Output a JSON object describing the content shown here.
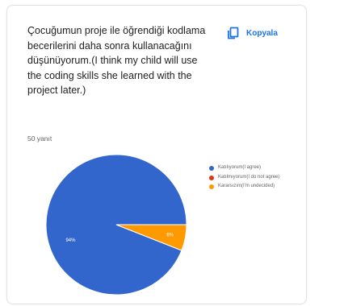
{
  "question": {
    "text": "Çocuğumun proje ile öğrendiği kodlama becerilerini daha sonra kullanacağını düşünüyorum.(I think my child will use the coding skills she learned with the project later.)"
  },
  "copy_button": {
    "label": "Kopyala"
  },
  "response_count": "50 yanıt",
  "colors": {
    "blue": "#3366cc",
    "red": "#dc3912",
    "orange": "#ff9900",
    "accent": "#1a73e8"
  },
  "chart_data": {
    "type": "pie",
    "slices": [
      {
        "label": "Katılıyorum(I agree)",
        "value": 94,
        "display": "94%",
        "color": "#3366cc"
      },
      {
        "label": "Katılmıyorum(I do not agree)",
        "value": 0,
        "display": "",
        "color": "#dc3912"
      },
      {
        "label": "Kararsızım(I'm undecided)",
        "value": 6,
        "display": "6%",
        "color": "#ff9900"
      }
    ],
    "legend_position": "right"
  }
}
